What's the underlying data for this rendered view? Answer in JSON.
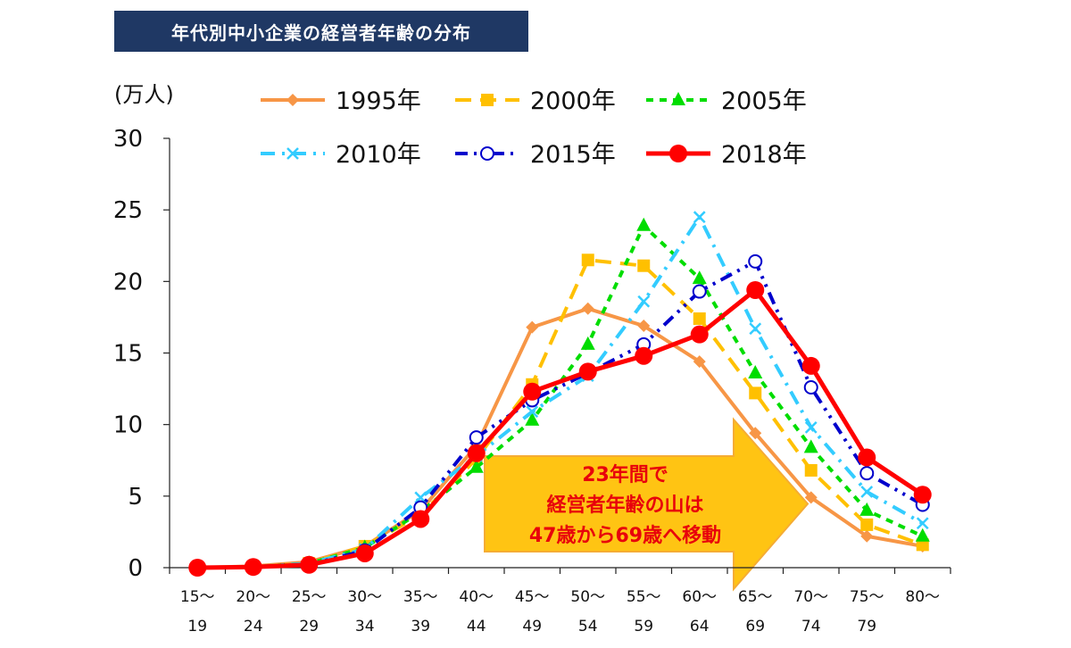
{
  "title": "年代別中小企業の経営者年齢の分布",
  "unit": "(万人)",
  "chart_data": {
    "type": "line",
    "title": "年代別中小企業の経営者年齢の分布",
    "ylabel": "(万人)",
    "xlabel": "",
    "ylim": [
      0,
      30
    ],
    "yticks": [
      0,
      5,
      10,
      15,
      20,
      25,
      30
    ],
    "grid": false,
    "legend_position": "top",
    "categories": [
      {
        "top": "15～",
        "bottom": "19"
      },
      {
        "top": "20～",
        "bottom": "24"
      },
      {
        "top": "25～",
        "bottom": "29"
      },
      {
        "top": "30～",
        "bottom": "34"
      },
      {
        "top": "35～",
        "bottom": "39"
      },
      {
        "top": "40～",
        "bottom": "44"
      },
      {
        "top": "45～",
        "bottom": "49"
      },
      {
        "top": "50～",
        "bottom": "54"
      },
      {
        "top": "55～",
        "bottom": "59"
      },
      {
        "top": "60～",
        "bottom": "64"
      },
      {
        "top": "65～",
        "bottom": "69"
      },
      {
        "top": "70～",
        "bottom": "74"
      },
      {
        "top": "75～",
        "bottom": "79"
      },
      {
        "top": "80～",
        "bottom": ""
      }
    ],
    "series": [
      {
        "name": "1995年",
        "color": "#f79646",
        "dash": "",
        "marker": "diamond",
        "values": [
          0,
          0.1,
          0.4,
          1.5,
          4.0,
          8.5,
          16.8,
          18.1,
          16.9,
          14.4,
          9.4,
          4.9,
          2.2,
          1.5
        ]
      },
      {
        "name": "2000年",
        "color": "#ffc000",
        "dash": "18,10",
        "marker": "square",
        "values": [
          0,
          0.05,
          0.3,
          1.5,
          3.7,
          7.6,
          12.8,
          21.5,
          21.1,
          17.4,
          12.2,
          6.8,
          3.0,
          1.6
        ]
      },
      {
        "name": "2005年",
        "color": "#00dd00",
        "dash": "8,7",
        "marker": "triangle",
        "values": [
          0,
          0.05,
          0.3,
          1.4,
          3.9,
          7.0,
          10.3,
          15.6,
          23.9,
          20.2,
          13.6,
          8.4,
          4.0,
          2.2
        ]
      },
      {
        "name": "2010年",
        "color": "#33ccff",
        "dash": "16,8,3,8",
        "marker": "cross",
        "values": [
          0,
          0.05,
          0.3,
          1.3,
          4.9,
          7.8,
          10.9,
          13.4,
          18.6,
          24.5,
          16.7,
          9.8,
          5.3,
          3.1
        ]
      },
      {
        "name": "2015年",
        "color": "#0000cc",
        "dash": "14,7,3,7,3,7",
        "marker": "circle-open",
        "values": [
          0,
          0.05,
          0.2,
          1.2,
          4.2,
          9.1,
          11.7,
          13.6,
          15.6,
          19.3,
          21.4,
          12.6,
          6.6,
          4.4
        ]
      },
      {
        "name": "2018年",
        "color": "#ff0000",
        "dash": "",
        "marker": "circle-filled",
        "values": [
          0,
          0.05,
          0.2,
          1.0,
          3.4,
          8.0,
          12.3,
          13.7,
          14.8,
          16.3,
          19.4,
          14.1,
          7.7,
          5.1
        ]
      }
    ],
    "annotation": {
      "lines": [
        "23年間で",
        "経営者年齢の山は",
        "47歳から69歳へ移動"
      ],
      "arrow_color": "#ffc000"
    }
  }
}
